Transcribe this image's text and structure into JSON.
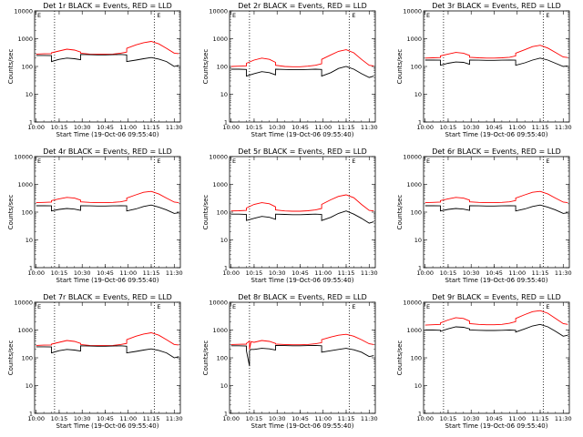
{
  "figure": {
    "xlabel": "Start Time (19-Oct-06 09:55:40)",
    "ylabel": "Counts/sec",
    "xtick_labels": [
      "10:00",
      "10:15",
      "10:30",
      "10:45",
      "11:00",
      "11:15",
      "11:30"
    ],
    "ytick_labels": [
      "1",
      "10",
      "100",
      "1000",
      "10000"
    ],
    "legend_glyph": "E",
    "colors": {
      "events": "#000000",
      "lld": "#ff0000",
      "axes": "#000000"
    }
  },
  "chart_data": [
    {
      "type": "line",
      "title": "Det 1r BLACK = Events, RED = LLD",
      "x": [
        "10:00",
        "10:05",
        "10:10",
        "10:10",
        "10:15",
        "10:20",
        "10:25",
        "10:29",
        "10:29",
        "10:35",
        "10:40",
        "10:45",
        "10:50",
        "10:55",
        "10:59",
        "10:59",
        "11:05",
        "11:10",
        "11:15",
        "11:20",
        "11:25",
        "11:30",
        "11:33"
      ],
      "series": [
        {
          "name": "Events",
          "values": [
            250,
            250,
            245,
            150,
            180,
            200,
            190,
            175,
            270,
            265,
            260,
            260,
            265,
            270,
            260,
            150,
            170,
            190,
            210,
            185,
            150,
            100,
            110
          ]
        },
        {
          "name": "LLD",
          "values": [
            280,
            285,
            290,
            310,
            360,
            420,
            390,
            330,
            300,
            280,
            275,
            275,
            280,
            300,
            330,
            450,
            600,
            720,
            800,
            650,
            450,
            300,
            290
          ]
        }
      ],
      "ylim": [
        1,
        10000
      ],
      "yscale": "log",
      "markers_x": [
        "10:12",
        "11:17"
      ]
    },
    {
      "type": "line",
      "title": "Det 2r BLACK = Events, RED = LLD",
      "x": [
        "10:00",
        "10:05",
        "10:10",
        "10:10",
        "10:15",
        "10:20",
        "10:25",
        "10:29",
        "10:29",
        "10:35",
        "10:40",
        "10:45",
        "10:50",
        "10:55",
        "10:59",
        "10:59",
        "11:05",
        "11:10",
        "11:15",
        "11:20",
        "11:25",
        "11:30",
        "11:33"
      ],
      "series": [
        {
          "name": "Events",
          "values": [
            80,
            80,
            78,
            45,
            55,
            65,
            60,
            50,
            80,
            78,
            76,
            76,
            78,
            80,
            78,
            45,
            60,
            85,
            100,
            80,
            55,
            40,
            45
          ]
        },
        {
          "name": "LLD",
          "values": [
            100,
            102,
            105,
            130,
            170,
            200,
            180,
            140,
            110,
            100,
            98,
            98,
            102,
            110,
            125,
            180,
            260,
            350,
            400,
            310,
            180,
            110,
            105
          ]
        }
      ],
      "ylim": [
        1,
        10000
      ],
      "yscale": "log",
      "markers_x": [
        "10:12",
        "11:17"
      ]
    },
    {
      "type": "line",
      "title": "Det 3r BLACK = Events, RED = LLD",
      "x": [
        "10:00",
        "10:05",
        "10:10",
        "10:10",
        "10:15",
        "10:20",
        "10:25",
        "10:29",
        "10:29",
        "10:35",
        "10:40",
        "10:45",
        "10:50",
        "10:55",
        "10:59",
        "10:59",
        "11:05",
        "11:10",
        "11:15",
        "11:20",
        "11:25",
        "11:30",
        "11:33"
      ],
      "series": [
        {
          "name": "Events",
          "values": [
            170,
            170,
            168,
            110,
            130,
            145,
            140,
            120,
            170,
            168,
            166,
            166,
            168,
            170,
            168,
            110,
            135,
            170,
            200,
            170,
            130,
            100,
            105
          ]
        },
        {
          "name": "LLD",
          "values": [
            200,
            205,
            210,
            240,
            280,
            320,
            300,
            250,
            215,
            205,
            200,
            200,
            205,
            215,
            240,
            300,
            400,
            520,
            580,
            460,
            320,
            220,
            210
          ]
        }
      ],
      "ylim": [
        1,
        10000
      ],
      "yscale": "log",
      "markers_x": [
        "10:12",
        "11:17"
      ]
    },
    {
      "type": "line",
      "title": "Det 4r BLACK = Events, RED = LLD",
      "x": [
        "10:00",
        "10:05",
        "10:10",
        "10:10",
        "10:15",
        "10:20",
        "10:25",
        "10:29",
        "10:29",
        "10:35",
        "10:40",
        "10:45",
        "10:50",
        "10:55",
        "10:59",
        "10:59",
        "11:05",
        "11:10",
        "11:15",
        "11:20",
        "11:25",
        "11:30",
        "11:33"
      ],
      "series": [
        {
          "name": "Events",
          "values": [
            170,
            170,
            168,
            110,
            125,
            135,
            128,
            115,
            170,
            168,
            166,
            166,
            168,
            170,
            168,
            110,
            130,
            160,
            180,
            150,
            120,
            90,
            95
          ]
        },
        {
          "name": "LLD",
          "values": [
            220,
            225,
            230,
            260,
            300,
            340,
            320,
            270,
            235,
            225,
            220,
            220,
            225,
            235,
            260,
            320,
            420,
            520,
            560,
            450,
            320,
            230,
            220
          ]
        }
      ],
      "ylim": [
        1,
        10000
      ],
      "yscale": "log",
      "markers_x": [
        "10:12",
        "11:17"
      ]
    },
    {
      "type": "line",
      "title": "Det 5r BLACK = Events, RED = LLD",
      "x": [
        "10:00",
        "10:05",
        "10:10",
        "10:10",
        "10:15",
        "10:20",
        "10:25",
        "10:29",
        "10:29",
        "10:35",
        "10:40",
        "10:45",
        "10:50",
        "10:55",
        "10:59",
        "10:59",
        "11:05",
        "11:10",
        "11:15",
        "11:20",
        "11:25",
        "11:30",
        "11:33"
      ],
      "series": [
        {
          "name": "Events",
          "values": [
            85,
            85,
            83,
            50,
            60,
            70,
            65,
            55,
            85,
            83,
            81,
            81,
            83,
            85,
            83,
            50,
            65,
            90,
            110,
            85,
            60,
            40,
            45
          ]
        },
        {
          "name": "LLD",
          "values": [
            110,
            112,
            115,
            140,
            190,
            220,
            200,
            155,
            120,
            110,
            108,
            108,
            112,
            120,
            135,
            190,
            280,
            370,
            420,
            330,
            190,
            115,
            110
          ]
        }
      ],
      "ylim": [
        1,
        10000
      ],
      "yscale": "log",
      "markers_x": [
        "10:12",
        "11:17"
      ]
    },
    {
      "type": "line",
      "title": "Det 6r BLACK = Events, RED = LLD",
      "x": [
        "10:00",
        "10:05",
        "10:10",
        "10:10",
        "10:15",
        "10:20",
        "10:25",
        "10:29",
        "10:29",
        "10:35",
        "10:40",
        "10:45",
        "10:50",
        "10:55",
        "10:59",
        "10:59",
        "11:05",
        "11:10",
        "11:15",
        "11:20",
        "11:25",
        "11:30",
        "11:33"
      ],
      "series": [
        {
          "name": "Events",
          "values": [
            170,
            170,
            168,
            110,
            125,
            135,
            128,
            115,
            170,
            168,
            166,
            166,
            168,
            170,
            168,
            110,
            130,
            160,
            180,
            150,
            120,
            90,
            95
          ]
        },
        {
          "name": "LLD",
          "values": [
            220,
            225,
            230,
            260,
            300,
            340,
            320,
            270,
            235,
            225,
            220,
            220,
            225,
            235,
            260,
            320,
            420,
            520,
            560,
            450,
            320,
            230,
            220
          ]
        }
      ],
      "ylim": [
        1,
        10000
      ],
      "yscale": "log",
      "markers_x": [
        "10:12",
        "11:17"
      ]
    },
    {
      "type": "line",
      "title": "Det 7r BLACK = Events, RED = LLD",
      "x": [
        "10:00",
        "10:05",
        "10:10",
        "10:10",
        "10:15",
        "10:20",
        "10:25",
        "10:29",
        "10:29",
        "10:35",
        "10:40",
        "10:45",
        "10:50",
        "10:55",
        "10:59",
        "10:59",
        "11:05",
        "11:10",
        "11:15",
        "11:20",
        "11:25",
        "11:30",
        "11:33"
      ],
      "series": [
        {
          "name": "Events",
          "values": [
            250,
            250,
            245,
            150,
            180,
            200,
            190,
            175,
            270,
            265,
            260,
            260,
            265,
            270,
            260,
            150,
            170,
            190,
            210,
            185,
            150,
            100,
            110
          ]
        },
        {
          "name": "LLD",
          "values": [
            280,
            285,
            290,
            310,
            360,
            420,
            390,
            330,
            300,
            280,
            275,
            275,
            280,
            300,
            330,
            450,
            600,
            720,
            800,
            650,
            450,
            300,
            290
          ]
        }
      ],
      "ylim": [
        1,
        10000
      ],
      "yscale": "log",
      "markers_x": [
        "10:12",
        "11:17"
      ]
    },
    {
      "type": "line",
      "title": "Det 8r BLACK = Events, RED = LLD",
      "x": [
        "10:00",
        "10:05",
        "10:10",
        "10:10",
        "10:12",
        "10:12",
        "10:13",
        "10:15",
        "10:20",
        "10:25",
        "10:29",
        "10:29",
        "10:35",
        "10:40",
        "10:45",
        "10:50",
        "10:55",
        "10:59",
        "10:59",
        "11:05",
        "11:10",
        "11:15",
        "11:20",
        "11:25",
        "11:30",
        "11:33"
      ],
      "series": [
        {
          "name": "Events",
          "values": [
            270,
            270,
            265,
            180,
            50,
            180,
            200,
            200,
            220,
            210,
            190,
            280,
            275,
            270,
            270,
            275,
            280,
            270,
            160,
            180,
            200,
            220,
            195,
            160,
            110,
            120
          ]
        },
        {
          "name": "LLD",
          "values": [
            300,
            305,
            310,
            330,
            400,
            200,
            380,
            360,
            420,
            390,
            330,
            310,
            300,
            295,
            295,
            300,
            320,
            350,
            450,
            560,
            650,
            700,
            600,
            450,
            320,
            300
          ]
        }
      ],
      "ylim": [
        1,
        10000
      ],
      "yscale": "log",
      "markers_x": [
        "10:12",
        "11:17"
      ]
    },
    {
      "type": "line",
      "title": "Det 9r BLACK = Events, RED = LLD",
      "x": [
        "10:00",
        "10:05",
        "10:10",
        "10:10",
        "10:15",
        "10:20",
        "10:25",
        "10:29",
        "10:29",
        "10:35",
        "10:40",
        "10:45",
        "10:50",
        "10:55",
        "10:59",
        "10:59",
        "11:05",
        "11:10",
        "11:15",
        "11:20",
        "11:25",
        "11:30",
        "11:33"
      ],
      "series": [
        {
          "name": "Events",
          "values": [
            1000,
            1000,
            980,
            900,
            1100,
            1300,
            1250,
            1100,
            1000,
            980,
            960,
            960,
            980,
            1000,
            980,
            850,
            1100,
            1400,
            1600,
            1300,
            900,
            600,
            650
          ]
        },
        {
          "name": "LLD",
          "values": [
            1500,
            1550,
            1600,
            1800,
            2300,
            2800,
            2600,
            2100,
            1700,
            1600,
            1550,
            1550,
            1600,
            1750,
            2000,
            2600,
            3600,
            4600,
            5000,
            4000,
            2600,
            1700,
            1600
          ]
        }
      ],
      "ylim": [
        1,
        10000
      ],
      "yscale": "log",
      "markers_x": [
        "10:12",
        "11:17"
      ]
    }
  ]
}
